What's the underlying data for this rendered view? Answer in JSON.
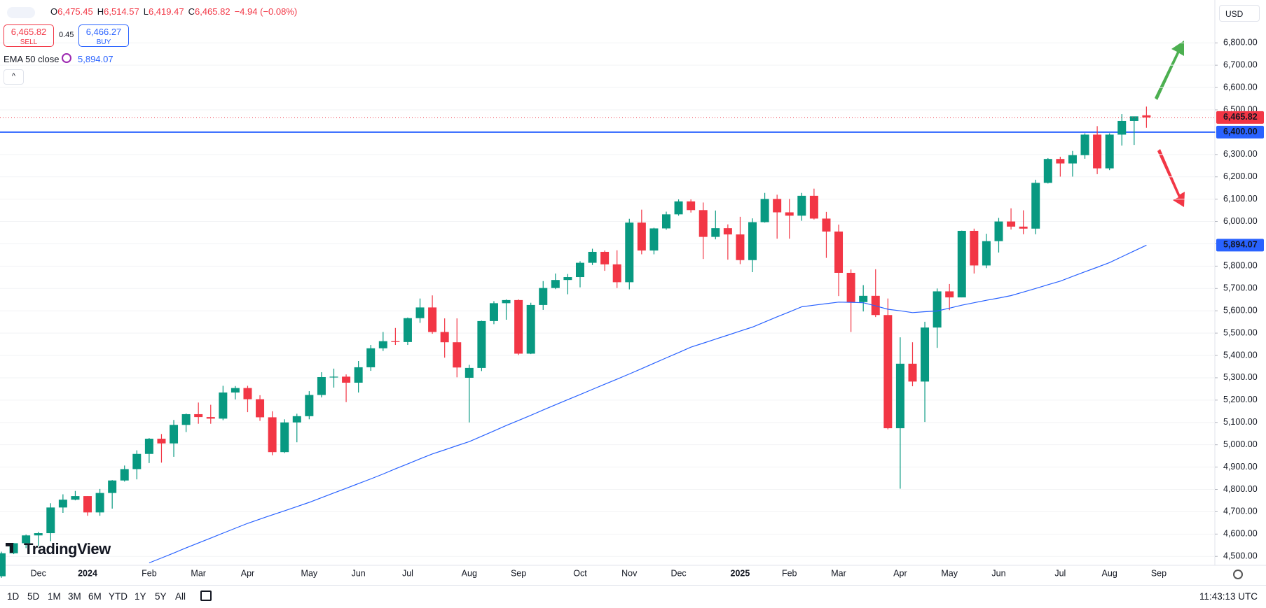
{
  "header": {
    "ohlc": [
      {
        "key": "O",
        "value": "6,475.45"
      },
      {
        "key": "H",
        "value": "6,514.57"
      },
      {
        "key": "L",
        "value": "6,419.47"
      },
      {
        "key": "C",
        "value": "6,465.82"
      }
    ],
    "change": "−4.94 (−0.08%)",
    "sell": {
      "price": "6,465.82",
      "label": "SELL"
    },
    "spread": "0.45",
    "buy": {
      "price": "6,466.27",
      "label": "BUY"
    },
    "currency": "USD",
    "logo": "TradingView"
  },
  "toolbar": {
    "ranges": [
      "1D",
      "5D",
      "1M",
      "3M",
      "6M",
      "YTD",
      "1Y",
      "5Y",
      "All"
    ],
    "time": "11:43:13 UTC"
  },
  "chart_data": {
    "type": "candlestick",
    "up_color": "#089981",
    "down_color": "#f23645",
    "categories": [
      null,
      null,
      null,
      "Dec",
      null,
      null,
      null,
      "2024",
      null,
      null,
      null,
      null,
      "Feb",
      null,
      null,
      null,
      "Mar",
      null,
      null,
      null,
      "Apr",
      null,
      null,
      null,
      null,
      "May",
      null,
      null,
      null,
      "Jun",
      null,
      null,
      null,
      "Jul",
      null,
      null,
      null,
      null,
      "Aug",
      null,
      null,
      null,
      "Sep",
      null,
      null,
      null,
      null,
      "Oct",
      null,
      null,
      null,
      "Nov",
      null,
      null,
      null,
      "Dec",
      null,
      null,
      null,
      null,
      "2025",
      null,
      null,
      null,
      "Feb",
      null,
      null,
      null,
      "Mar",
      null,
      null,
      null,
      null,
      "Apr",
      null,
      null,
      null,
      "May",
      null,
      null,
      null,
      "Jun",
      null,
      null,
      null,
      null,
      "Jul",
      null,
      null,
      null,
      "Aug",
      null,
      null,
      null,
      "Sep"
    ],
    "open": [
      4411,
      4514,
      4559,
      4594,
      4604,
      4719,
      4754,
      4770,
      4697,
      4784,
      4840,
      4891,
      4959,
      5027,
      5006,
      5089,
      5137,
      5124,
      5117,
      5234,
      5254,
      5204,
      5123,
      4967,
      5100,
      5128,
      5223,
      5303,
      5305,
      5278,
      5347,
      5432,
      5464,
      5460,
      5567,
      5615,
      5505,
      5459,
      5300,
      5344,
      5554,
      5634,
      5648,
      5408,
      5626,
      5702,
      5738,
      5751,
      5815,
      5864,
      5808,
      5728,
      5995,
      5870,
      5969,
      6032,
      6090,
      6051,
      5931,
      5970,
      5942,
      5827,
      5997,
      6101,
      6041,
      6026,
      6115,
      6013,
      5955,
      5770,
      5639,
      5667,
      5581,
      5074,
      5363,
      5283,
      5525,
      5687,
      5660,
      5958,
      5803,
      5912,
      6000,
      5977,
      5968,
      6173,
      6280,
      6260,
      6297,
      6389,
      6238,
      6389,
      6450,
      6475.45,
      null
    ],
    "high": [
      4521,
      4560,
      4598,
      4610,
      4738,
      4778,
      4793,
      4770,
      4802,
      4842,
      4907,
      4975,
      5030,
      5048,
      5111,
      5140,
      5189,
      5179,
      5264,
      5263,
      5264,
      5222,
      5150,
      5114,
      5139,
      5240,
      5325,
      5341,
      5315,
      5375,
      5447,
      5505,
      5523,
      5570,
      5655,
      5669,
      5566,
      5566,
      5358,
      5556,
      5643,
      5651,
      5651,
      5636,
      5733,
      5767,
      5765,
      5822,
      5878,
      5870,
      5871,
      6012,
      6053,
      5972,
      6044,
      6099,
      6099,
      6085,
      6049,
      5987,
      6021,
      6014,
      6128,
      6120,
      6101,
      6128,
      6147,
      6043,
      5986,
      5785,
      5715,
      5786,
      5655,
      5481,
      5459,
      5551,
      5700,
      5720,
      5959,
      5968,
      5945,
      6016,
      6059,
      6050,
      6187,
      6284,
      6290,
      6316,
      6395,
      6427,
      6395,
      6481,
      6469,
      6514.57,
      null
    ],
    "low": [
      4404,
      4510,
      4537,
      4546,
      4568,
      4695,
      4751,
      4682,
      4682,
      4714,
      4835,
      4845,
      4918,
      4920,
      4946,
      5057,
      5094,
      5094,
      5110,
      5203,
      5146,
      5107,
      4953,
      4963,
      5011,
      5114,
      5212,
      5256,
      5191,
      5234,
      5331,
      5420,
      5447,
      5447,
      5546,
      5497,
      5390,
      5302,
      5100,
      5330,
      5540,
      5560,
      5402,
      5406,
      5604,
      5697,
      5674,
      5705,
      5805,
      5779,
      5702,
      5696,
      5853,
      5853,
      5963,
      6026,
      6040,
      5832,
      5920,
      5829,
      5809,
      5773,
      5995,
      5923,
      5923,
      6003,
      6009,
      5837,
      5666,
      5505,
      5597,
      5572,
      5069,
      4803,
      5262,
      5102,
      5434,
      5603,
      5660,
      5767,
      5791,
      5861,
      5964,
      5943,
      5943,
      6170,
      6201,
      6201,
      6281,
      6212,
      6230,
      6340,
      6343,
      6419.47,
      null
    ],
    "close": [
      4514,
      4559,
      4594,
      4604,
      4719,
      4754,
      4770,
      4697,
      4784,
      4840,
      4891,
      4959,
      5027,
      5006,
      5089,
      5137,
      5124,
      5117,
      5234,
      5254,
      5204,
      5123,
      4967,
      5100,
      5128,
      5223,
      5303,
      5305,
      5278,
      5347,
      5432,
      5464,
      5460,
      5567,
      5615,
      5505,
      5459,
      5346,
      5344,
      5554,
      5634,
      5648,
      5408,
      5626,
      5702,
      5738,
      5751,
      5815,
      5864,
      5808,
      5728,
      5995,
      5870,
      5969,
      6032,
      6090,
      6051,
      5931,
      5970,
      5942,
      5827,
      5997,
      6101,
      6041,
      6026,
      6115,
      6013,
      5955,
      5770,
      5639,
      5667,
      5581,
      5074,
      5363,
      5283,
      5525,
      5687,
      5660,
      5958,
      5803,
      5912,
      6000,
      5977,
      5968,
      6173,
      6280,
      6260,
      6297,
      6389,
      6238,
      6389,
      6450,
      6470.76,
      6465.82,
      null
    ],
    "ema": {
      "name": "EMA 50 close",
      "color": "#2962ff",
      "last_label": "5,894.07",
      "values": [
        null,
        null,
        null,
        null,
        null,
        null,
        null,
        null,
        null,
        null,
        null,
        null,
        4471,
        4493,
        4515,
        4538,
        4560,
        4582,
        4604,
        4626,
        4648,
        4667,
        4686,
        4704,
        4723,
        4742,
        4763,
        4784,
        4805,
        4826,
        4847,
        4869,
        4892,
        4914,
        4937,
        4959,
        4977,
        4996,
        5014,
        5038,
        5062,
        5086,
        5109,
        5132,
        5156,
        5179,
        5202,
        5225,
        5248,
        5271,
        5294,
        5317,
        5341,
        5365,
        5389,
        5413,
        5437,
        5455,
        5473,
        5491,
        5509,
        5527,
        5550,
        5573,
        5595,
        5618,
        5625,
        5632,
        5639,
        5638,
        5636,
        5622,
        5607,
        5600,
        5592,
        5596,
        5599,
        5612,
        5625,
        5636,
        5647,
        5657,
        5668,
        5684,
        5700,
        5717,
        5733,
        5754,
        5775,
        5795,
        5816,
        5842,
        5868,
        5894.07,
        null
      ]
    },
    "hline": {
      "value": 6400,
      "label": "6,400.00",
      "color": "#2962ff"
    },
    "last_price": {
      "value": 6465.82,
      "label": "6,465.82",
      "color": "#f23645"
    },
    "ylim": [
      4460,
      6992
    ],
    "yticks": [
      {
        "value": 4500,
        "label": "4,500.00"
      },
      {
        "value": 4600,
        "label": "4,600.00"
      },
      {
        "value": 4700,
        "label": "4,700.00"
      },
      {
        "value": 4800,
        "label": "4,800.00"
      },
      {
        "value": 4900,
        "label": "4,900.00"
      },
      {
        "value": 5000,
        "label": "5,000.00"
      },
      {
        "value": 5100,
        "label": "5,100.00"
      },
      {
        "value": 5200,
        "label": "5,200.00"
      },
      {
        "value": 5300,
        "label": "5,300.00"
      },
      {
        "value": 5400,
        "label": "5,400.00"
      },
      {
        "value": 5500,
        "label": "5,500.00"
      },
      {
        "value": 5600,
        "label": "5,600.00"
      },
      {
        "value": 5700,
        "label": "5,700.00"
      },
      {
        "value": 5800,
        "label": "5,800.00"
      },
      {
        "value": 5900,
        "label": "5,900.00"
      },
      {
        "value": 6000,
        "label": "6,000.00"
      },
      {
        "value": 6100,
        "label": "6,100.00"
      },
      {
        "value": 6200,
        "label": "6,200.00"
      },
      {
        "value": 6300,
        "label": "6,300.00"
      },
      {
        "value": 6400,
        "label": "6,400.00"
      },
      {
        "value": 6500,
        "label": "6,500.00"
      },
      {
        "value": 6600,
        "label": "6,600.00"
      },
      {
        "value": 6700,
        "label": "6,700.00"
      },
      {
        "value": 6800,
        "label": "6,800.00"
      }
    ],
    "grid": true
  }
}
